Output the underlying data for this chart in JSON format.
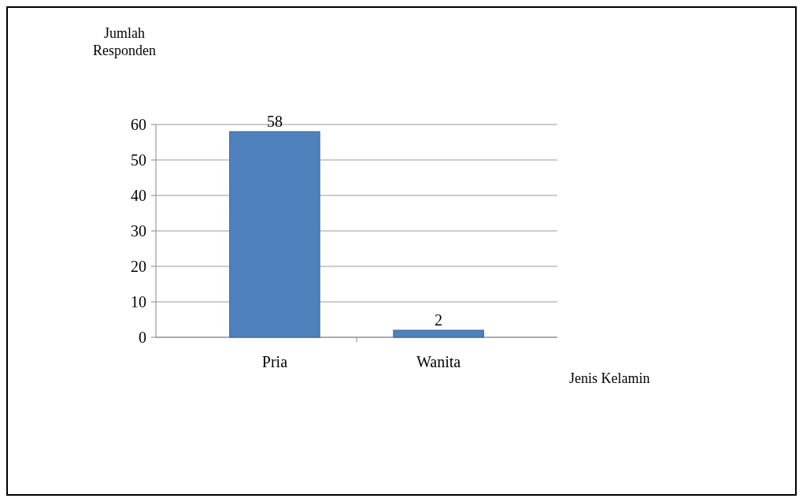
{
  "chart_data": {
    "type": "bar",
    "xlabel": "Jenis Kelamin",
    "ylabel": "Jumlah Responden",
    "categories": [
      "Pria",
      "Wanita"
    ],
    "values": [
      58,
      2
    ],
    "color": "#4f81bd",
    "ylim": [
      0,
      60
    ],
    "yticks": [
      0,
      10,
      20,
      30,
      40,
      50,
      60
    ],
    "grid": "y",
    "data_labels": true
  }
}
